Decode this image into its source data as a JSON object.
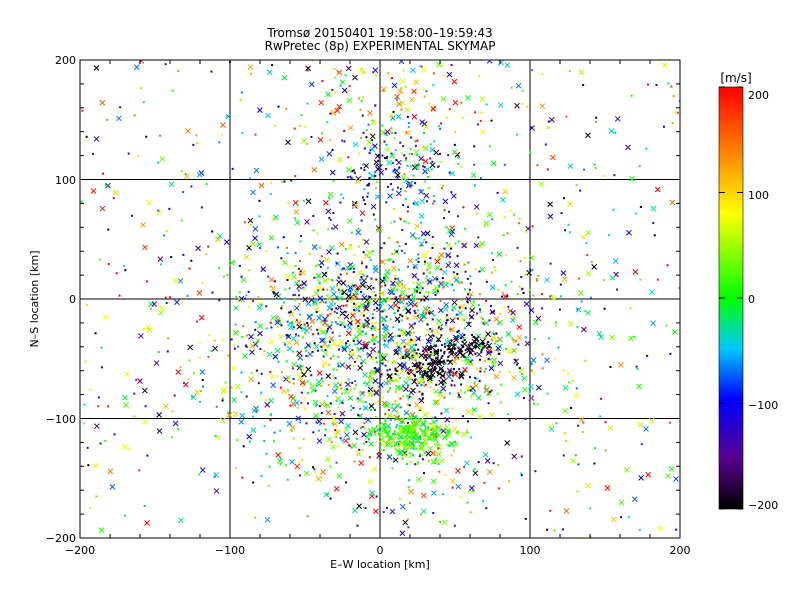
{
  "chart_data": {
    "type": "scatter",
    "title": "Tromsø 20150401 19:58:00–19:59:43",
    "subtitle": "RwPretec (8p) EXPERIMENTAL SKYMAP",
    "xlabel": "E–W location [km]",
    "ylabel": "N–S location [km]",
    "xlim": [
      -200,
      200
    ],
    "ylim": [
      -200,
      200
    ],
    "xticks": [
      "−200",
      "−100",
      "0",
      "100",
      "200"
    ],
    "yticks": [
      "200",
      "100",
      "0",
      "−100",
      "−200"
    ],
    "grid_x": [
      -100,
      0,
      100
    ],
    "grid_y": [
      100,
      0,
      -100
    ],
    "markers": [
      "dot",
      "cross"
    ],
    "colorbar": {
      "unit": "[m/s]",
      "range": [
        -200,
        200
      ],
      "tick_labels": [
        "200",
        "100",
        "0",
        "−100",
        "−200"
      ],
      "tick_values": [
        200,
        100,
        0,
        -100,
        -200
      ],
      "colormap": [
        "#000000",
        "#5a0090",
        "#0000ff",
        "#00c8ff",
        "#00ff00",
        "#ffff00",
        "#ff9900",
        "#ff0000"
      ]
    },
    "clusters": [
      {
        "cx": 0,
        "cy": -40,
        "sx": 55,
        "sy": 55,
        "n": 1400,
        "vmean": 0,
        "vsd": 110
      },
      {
        "cx": 20,
        "cy": -115,
        "sx": 12,
        "sy": 9,
        "n": 260,
        "vmean": 20,
        "vsd": 25
      },
      {
        "cx": 35,
        "cy": -55,
        "sx": 12,
        "sy": 10,
        "n": 140,
        "vmean": -195,
        "vsd": 10
      },
      {
        "cx": 60,
        "cy": -38,
        "sx": 10,
        "sy": 5,
        "n": 60,
        "vmean": -195,
        "vsd": 10
      },
      {
        "cx": 10,
        "cy": 110,
        "sx": 25,
        "sy": 20,
        "n": 160,
        "vmean": -90,
        "vsd": 70
      },
      {
        "cx": 5,
        "cy": 160,
        "sx": 40,
        "sy": 25,
        "n": 110,
        "vmean": 60,
        "vsd": 90
      },
      {
        "cx": 0,
        "cy": -5,
        "sx": 45,
        "sy": 25,
        "n": 260,
        "vmean": -100,
        "vsd": 100
      },
      {
        "cx": 0,
        "cy": 0,
        "sx": 200,
        "sy": 200,
        "n": 650,
        "vmean": 0,
        "vsd": 130,
        "uniform": true
      }
    ]
  }
}
